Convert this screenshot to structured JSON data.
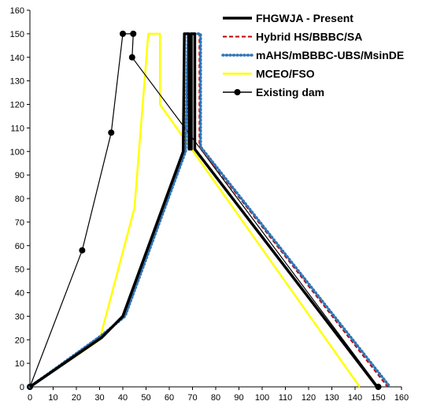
{
  "chart_data": {
    "type": "line",
    "title": "",
    "xlabel": "",
    "ylabel": "",
    "xlim": [
      0,
      160
    ],
    "ylim": [
      0,
      160
    ],
    "xticks": [
      0,
      10,
      20,
      30,
      40,
      50,
      60,
      70,
      80,
      90,
      100,
      110,
      120,
      130,
      140,
      150,
      160
    ],
    "yticks": [
      0,
      10,
      20,
      30,
      40,
      50,
      60,
      70,
      80,
      90,
      100,
      110,
      120,
      130,
      140,
      150,
      160
    ],
    "grid": false,
    "legend_position": "top-right",
    "series": [
      {
        "name": "FHGWJA - Present",
        "color": "#000000",
        "style": "solid-thick",
        "x": [
          0,
          31,
          40,
          66,
          66.5,
          68.5,
          68.5,
          69.5,
          69.5,
          71,
          71,
          149.5
        ],
        "y": [
          0,
          21,
          30,
          100,
          150,
          150,
          101,
          101,
          150,
          150,
          101,
          0
        ]
      },
      {
        "name": "Hybrid HS/BBBC/SA",
        "color": "#c00000",
        "style": "dashed",
        "x": [
          0,
          31,
          41,
          67,
          68,
          73,
          73,
          154
        ],
        "y": [
          0,
          22,
          30,
          100,
          150,
          150,
          102,
          0
        ]
      },
      {
        "name": "mAHS/mBBBC-UBS/MsinDE",
        "color": "#2e75b6",
        "style": "dotted",
        "x": [
          0,
          31,
          41,
          67,
          68,
          73.5,
          73.5,
          155
        ],
        "y": [
          0,
          22,
          30,
          100,
          150,
          150,
          102,
          0
        ]
      },
      {
        "name": "MCEO/FSO",
        "color": "#ffff00",
        "style": "solid",
        "x": [
          0,
          30,
          45,
          51,
          56,
          56,
          142
        ],
        "y": [
          0,
          20,
          76,
          150,
          150,
          120,
          0
        ]
      },
      {
        "name": "Existing dam",
        "color": "#000000",
        "style": "solid-markers",
        "x": [
          0,
          22.5,
          35,
          40,
          44.5,
          44,
          150
        ],
        "y": [
          0,
          58,
          108,
          150,
          150,
          140,
          0
        ]
      }
    ]
  }
}
